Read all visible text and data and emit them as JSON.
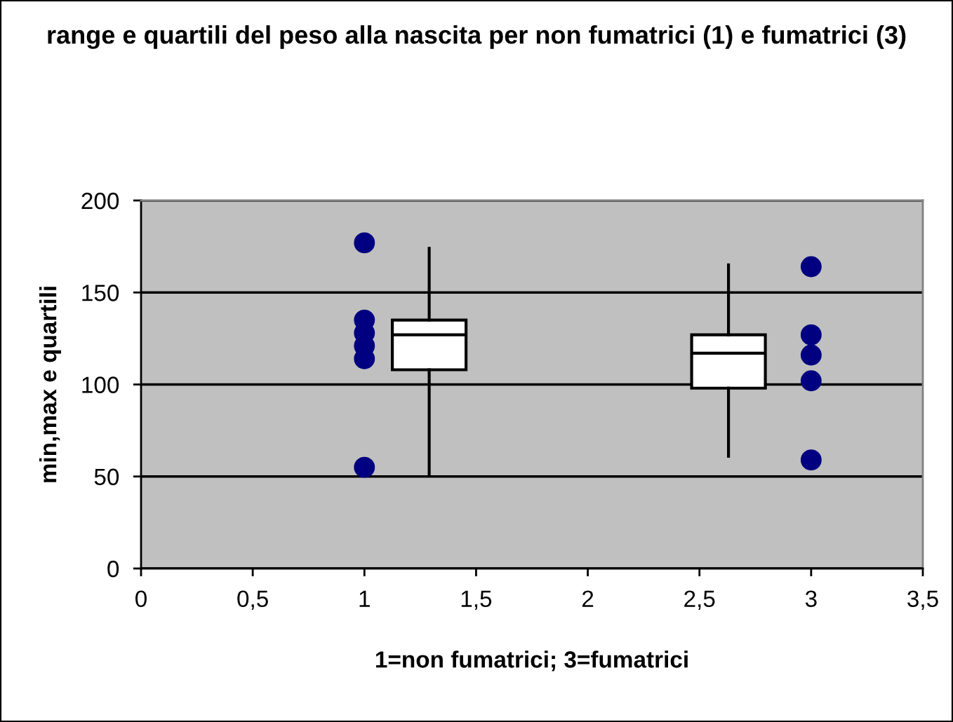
{
  "chart_data": {
    "type": "scatter",
    "title": "range e quartili del peso alla nascita per non fumatrici (1) e fumatrici (3)",
    "xlabel": "1=non fumatrici; 3=fumatrici",
    "ylabel": "min,max e quartili",
    "xlim": [
      0,
      3.5
    ],
    "xticks": [
      0,
      {
        "value": 0.5,
        "label": "0,5"
      },
      1,
      {
        "value": 1.5,
        "label": "1,5"
      },
      2,
      {
        "value": 2.5,
        "label": "2,5"
      },
      3,
      {
        "value": 3.5,
        "label": "3,5"
      }
    ],
    "ylim": [
      0,
      200
    ],
    "yticks": [
      0,
      50,
      100,
      150,
      200
    ],
    "grid": "y",
    "marker": "circle",
    "series": [
      {
        "color": "#000080",
        "x": [
          1,
          1,
          1,
          1,
          1,
          1,
          3,
          3,
          3,
          3,
          3
        ],
        "values": [
          177,
          135,
          128,
          121,
          114,
          55,
          164,
          127,
          116,
          102,
          59
        ]
      },
      {
        "type": "box",
        "color": "#ffffff",
        "x": [
          1.29,
          2.63
        ],
        "boxes": [
          {
            "low": 51,
            "q1": 108,
            "median": 127,
            "q3": 135,
            "high": 174
          },
          {
            "low": 61,
            "q1": 98,
            "median": 117,
            "q3": 127,
            "high": 165
          }
        ]
      }
    ]
  }
}
